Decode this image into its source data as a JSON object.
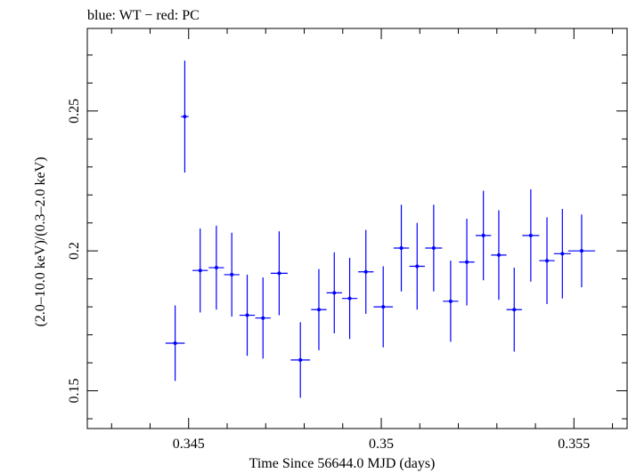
{
  "chart_data": {
    "type": "scatter",
    "title": "blue: WT − red: PC",
    "xlabel": "Time Since 56644.0 MJD (days)",
    "ylabel": "(2.0–10.0 keV)/(0.3–2.0 keV)",
    "xlim": [
      0.34237,
      0.35638
    ],
    "ylim": [
      0.1365,
      0.2795
    ],
    "x_ticks": [
      0.345,
      0.35,
      0.355
    ],
    "x_tick_labels": [
      "0.345",
      "0.35",
      "0.355"
    ],
    "y_ticks": [
      0.15,
      0.2,
      0.25
    ],
    "y_tick_labels": [
      "0.15",
      "0.2",
      "0.25"
    ],
    "grid": false,
    "colors": {
      "WT": "#0000ff",
      "PC": "#ff0000",
      "axes": "#000000"
    },
    "series": [
      {
        "name": "WT",
        "color": "#0000ff",
        "points": [
          {
            "x": 0.34465,
            "xerr": 0.00025,
            "y": 0.167,
            "yerr": 0.0135
          },
          {
            "x": 0.3449,
            "xerr": 0.0001,
            "y": 0.248,
            "yerr": 0.02
          },
          {
            "x": 0.3453,
            "xerr": 0.0002,
            "y": 0.193,
            "yerr": 0.015
          },
          {
            "x": 0.34572,
            "xerr": 0.0002,
            "y": 0.194,
            "yerr": 0.015
          },
          {
            "x": 0.34612,
            "xerr": 0.0002,
            "y": 0.1915,
            "yerr": 0.015
          },
          {
            "x": 0.34652,
            "xerr": 0.0002,
            "y": 0.177,
            "yerr": 0.0145
          },
          {
            "x": 0.34693,
            "xerr": 0.0002,
            "y": 0.176,
            "yerr": 0.0145
          },
          {
            "x": 0.34735,
            "xerr": 0.00022,
            "y": 0.192,
            "yerr": 0.015
          },
          {
            "x": 0.3479,
            "xerr": 0.00025,
            "y": 0.161,
            "yerr": 0.0135
          },
          {
            "x": 0.34838,
            "xerr": 0.0002,
            "y": 0.179,
            "yerr": 0.0145
          },
          {
            "x": 0.34878,
            "xerr": 0.0002,
            "y": 0.185,
            "yerr": 0.0145
          },
          {
            "x": 0.34918,
            "xerr": 0.0002,
            "y": 0.183,
            "yerr": 0.0145
          },
          {
            "x": 0.3496,
            "xerr": 0.0002,
            "y": 0.1925,
            "yerr": 0.015
          },
          {
            "x": 0.35005,
            "xerr": 0.00025,
            "y": 0.18,
            "yerr": 0.0145
          },
          {
            "x": 0.35052,
            "xerr": 0.0002,
            "y": 0.201,
            "yerr": 0.0155
          },
          {
            "x": 0.35093,
            "xerr": 0.0002,
            "y": 0.1945,
            "yerr": 0.0155
          },
          {
            "x": 0.35136,
            "xerr": 0.00022,
            "y": 0.201,
            "yerr": 0.0155
          },
          {
            "x": 0.3518,
            "xerr": 0.0002,
            "y": 0.182,
            "yerr": 0.0145
          },
          {
            "x": 0.35222,
            "xerr": 0.0002,
            "y": 0.196,
            "yerr": 0.0155
          },
          {
            "x": 0.35265,
            "xerr": 0.0002,
            "y": 0.2055,
            "yerr": 0.016
          },
          {
            "x": 0.35305,
            "xerr": 0.0002,
            "y": 0.1985,
            "yerr": 0.016
          },
          {
            "x": 0.35345,
            "xerr": 0.0002,
            "y": 0.179,
            "yerr": 0.015
          },
          {
            "x": 0.35388,
            "xerr": 0.00022,
            "y": 0.2055,
            "yerr": 0.0165
          },
          {
            "x": 0.3543,
            "xerr": 0.0002,
            "y": 0.1965,
            "yerr": 0.0155
          },
          {
            "x": 0.3547,
            "xerr": 0.00022,
            "y": 0.199,
            "yerr": 0.016
          },
          {
            "x": 0.3552,
            "xerr": 0.00035,
            "y": 0.2,
            "yerr": 0.013
          }
        ]
      }
    ]
  }
}
